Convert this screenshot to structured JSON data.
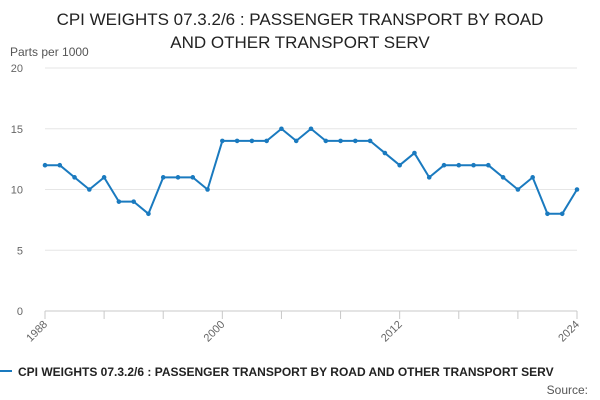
{
  "chart_data": {
    "type": "line",
    "title": "CPI WEIGHTS 07.3.2/6 : PASSENGER TRANSPORT BY ROAD AND OTHER TRANSPORT SERV",
    "title_display": "CPI WEIGHTS 07.3.2/6 : PASSENGER TRANSPORT BY ROAD\nAND OTHER TRANSPORT SERV",
    "ylabel": "Parts per 1000",
    "xlabel": "",
    "ylim": [
      0,
      20
    ],
    "xlim": [
      1988,
      2024
    ],
    "yticks": [
      0,
      5,
      10,
      15,
      20
    ],
    "xtick_labels": [
      "1988",
      "2000",
      "2012",
      "2024"
    ],
    "grid": true,
    "legend_position": "bottom",
    "color": "#1a7abf",
    "series": [
      {
        "name": "CPI WEIGHTS 07.3.2/6 : PASSENGER TRANSPORT BY ROAD AND OTHER TRANSPORT SERV",
        "x": [
          1988,
          1989,
          1990,
          1991,
          1992,
          1993,
          1994,
          1995,
          1996,
          1997,
          1998,
          1999,
          2000,
          2001,
          2002,
          2003,
          2004,
          2005,
          2006,
          2007,
          2008,
          2009,
          2010,
          2011,
          2012,
          2013,
          2014,
          2015,
          2016,
          2017,
          2018,
          2019,
          2020,
          2021,
          2022,
          2023,
          2024
        ],
        "values": [
          12,
          12,
          11,
          10,
          11,
          9,
          9,
          8,
          11,
          11,
          11,
          10,
          14,
          14,
          14,
          14,
          15,
          14,
          15,
          14,
          14,
          14,
          14,
          13,
          12,
          13,
          11,
          12,
          12,
          12,
          12,
          11,
          10,
          11,
          8,
          8,
          10
        ]
      }
    ]
  },
  "source_label": "Source:"
}
